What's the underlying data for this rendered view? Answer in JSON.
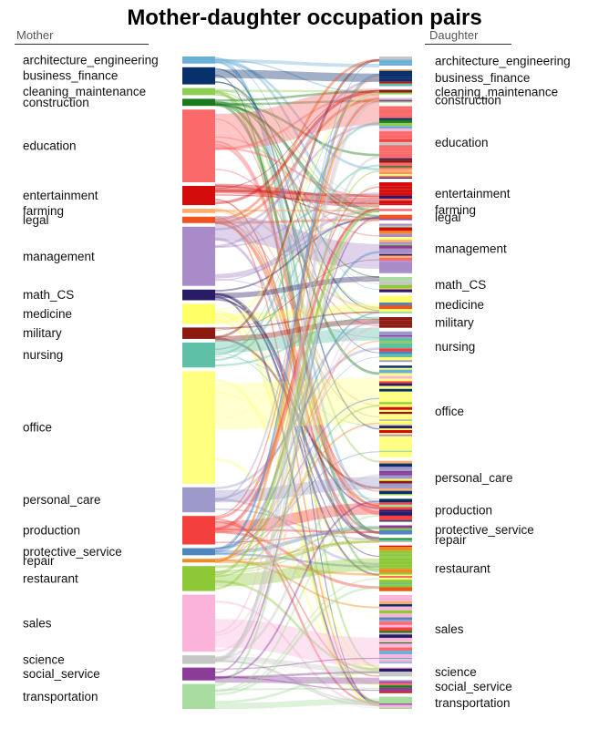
{
  "chart_data": {
    "type": "sankey",
    "title": "Mother-daughter occupation pairs",
    "source_column_label": "Mother",
    "target_column_label": "Daughter",
    "categories": [
      {
        "name": "architecture_engineering",
        "color": "#6baed6",
        "mother_count": 1.0,
        "daughter_count": 1.2
      },
      {
        "name": "business_finance",
        "color": "#08306b",
        "mother_count": 2.4,
        "daughter_count": 2.2
      },
      {
        "name": "cleaning_maintenance",
        "color": "#8fce55",
        "mother_count": 1.0,
        "daughter_count": 0.6
      },
      {
        "name": "construction",
        "color": "#1b7a1b",
        "mother_count": 1.0,
        "daughter_count": 0.6
      },
      {
        "name": "education",
        "color": "#fb6a6a",
        "mother_count": 10.2,
        "daughter_count": 9.5
      },
      {
        "name": "entertainment",
        "color": "#d40c0c",
        "mother_count": 2.7,
        "daughter_count": 3.0
      },
      {
        "name": "farming",
        "color": "#fdae6b",
        "mother_count": 0.6,
        "daughter_count": 0.3
      },
      {
        "name": "legal",
        "color": "#f0521e",
        "mother_count": 0.9,
        "daughter_count": 0.7
      },
      {
        "name": "management",
        "color": "#a88bc8",
        "mother_count": 8.3,
        "daughter_count": 6.5
      },
      {
        "name": "math_CS",
        "color": "#2a1b66",
        "mother_count": 1.5,
        "daughter_count": 2.0
      },
      {
        "name": "medicine",
        "color": "#ffff66",
        "mother_count": 2.8,
        "daughter_count": 2.3
      },
      {
        "name": "military",
        "color": "#8b1a10",
        "mother_count": 1.6,
        "daughter_count": 1.4
      },
      {
        "name": "nursing",
        "color": "#5fc0a8",
        "mother_count": 3.5,
        "daughter_count": 4.0
      },
      {
        "name": "office",
        "color": "#ffff80",
        "mother_count": 15.8,
        "daughter_count": 12.0
      },
      {
        "name": "personal_care",
        "color": "#9d9acb",
        "mother_count": 3.5,
        "daughter_count": 4.5
      },
      {
        "name": "production",
        "color": "#f4403c",
        "mother_count": 4.0,
        "daughter_count": 3.0
      },
      {
        "name": "protective_service",
        "color": "#4f86c0",
        "mother_count": 1.0,
        "daughter_count": 1.2
      },
      {
        "name": "repair",
        "color": "#f0891e",
        "mother_count": 0.5,
        "daughter_count": 0.5
      },
      {
        "name": "restaurant",
        "color": "#8dc836",
        "mother_count": 3.5,
        "daughter_count": 6.0
      },
      {
        "name": "sales",
        "color": "#fbb4d9",
        "mother_count": 8.0,
        "daughter_count": 9.0
      },
      {
        "name": "science",
        "color": "#c6c6c6",
        "mother_count": 1.2,
        "daughter_count": 1.2
      },
      {
        "name": "social_service",
        "color": "#8a3c98",
        "mother_count": 1.8,
        "daughter_count": 1.7
      },
      {
        "name": "transportation",
        "color": "#a8dca0",
        "mother_count": 3.5,
        "daughter_count": 1.6
      }
    ]
  }
}
